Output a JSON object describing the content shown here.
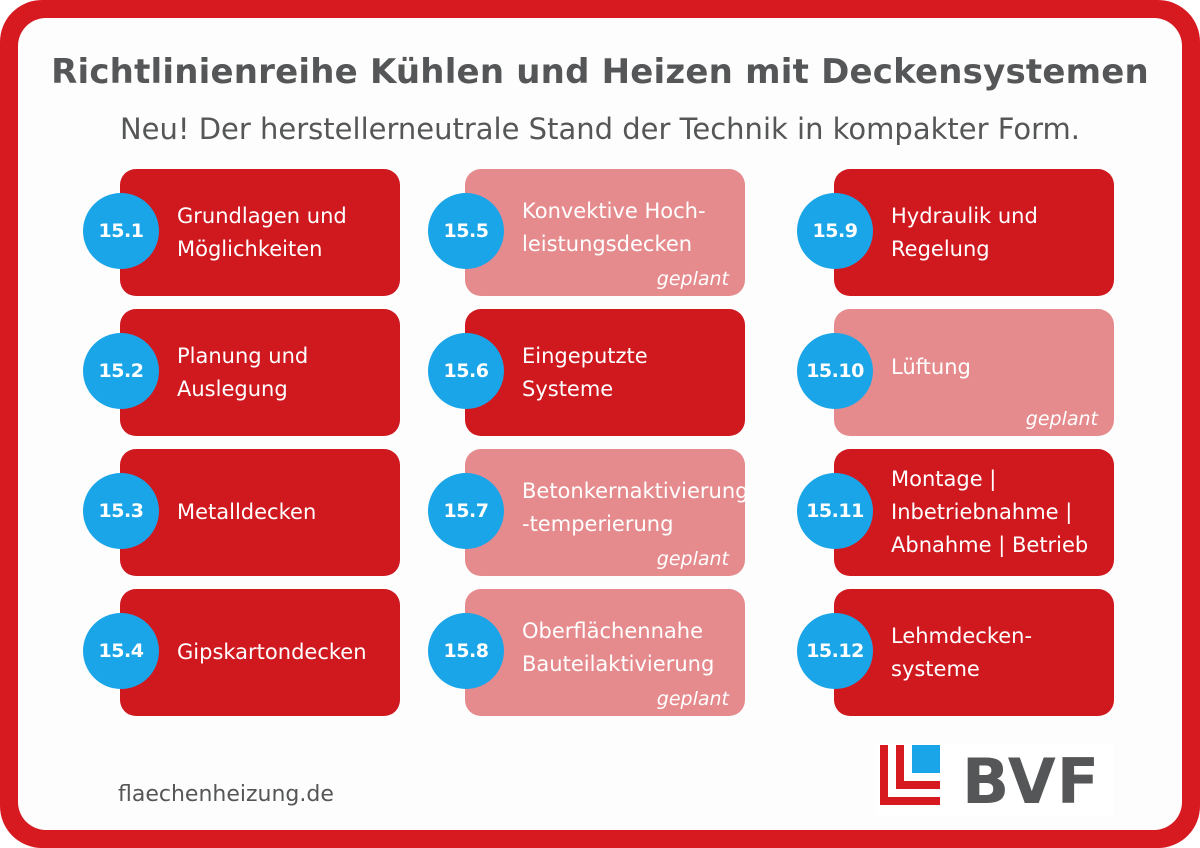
{
  "header": {
    "title": "Richtlinienreihe Kühlen und Heizen mit Deckensystemen",
    "subtitle": "Neu! Der herstellerneutrale Stand der Technik in kompakter Form."
  },
  "cards": [
    {
      "number": "15.1",
      "lines": [
        "Grundlagen und",
        "Möglichkeiten"
      ],
      "status": "active",
      "note": ""
    },
    {
      "number": "15.2",
      "lines": [
        "Planung und",
        "Auslegung"
      ],
      "status": "active",
      "note": ""
    },
    {
      "number": "15.3",
      "lines": [
        "Metalldecken"
      ],
      "status": "active",
      "note": ""
    },
    {
      "number": "15.4",
      "lines": [
        "Gipskartondecken"
      ],
      "status": "active",
      "note": ""
    },
    {
      "number": "15.5",
      "lines": [
        "Konvektive Hoch-",
        "leistungsdecken"
      ],
      "status": "planned",
      "note": "geplant"
    },
    {
      "number": "15.6",
      "lines": [
        "Eingeputzte",
        "Systeme"
      ],
      "status": "active",
      "note": ""
    },
    {
      "number": "15.7",
      "lines": [
        "Betonkernaktivierung,",
        "-temperierung"
      ],
      "status": "planned",
      "note": "geplant"
    },
    {
      "number": "15.8",
      "lines": [
        "Oberflächennahe",
        "Bauteilaktivierung"
      ],
      "status": "planned",
      "note": "geplant"
    },
    {
      "number": "15.9",
      "lines": [
        "Hydraulik und",
        "Regelung"
      ],
      "status": "active",
      "note": ""
    },
    {
      "number": "15.10",
      "lines": [
        "Lüftung"
      ],
      "status": "planned",
      "note": "geplant"
    },
    {
      "number": "15.11",
      "lines": [
        "Montage |",
        "Inbetriebnahme |",
        "Abnahme | Betrieb"
      ],
      "status": "active",
      "note": ""
    },
    {
      "number": "15.12",
      "lines": [
        "Lehmdecken-",
        "systeme"
      ],
      "status": "active",
      "note": ""
    }
  ],
  "footer": {
    "website": "flaechenheizung.de",
    "logo_text": "BVF"
  },
  "colors": {
    "frame": "#d71920",
    "card_active": "#d0181f",
    "card_planned": "#e68b8d",
    "badge": "#1aa5e8",
    "text_grey": "#555657"
  }
}
